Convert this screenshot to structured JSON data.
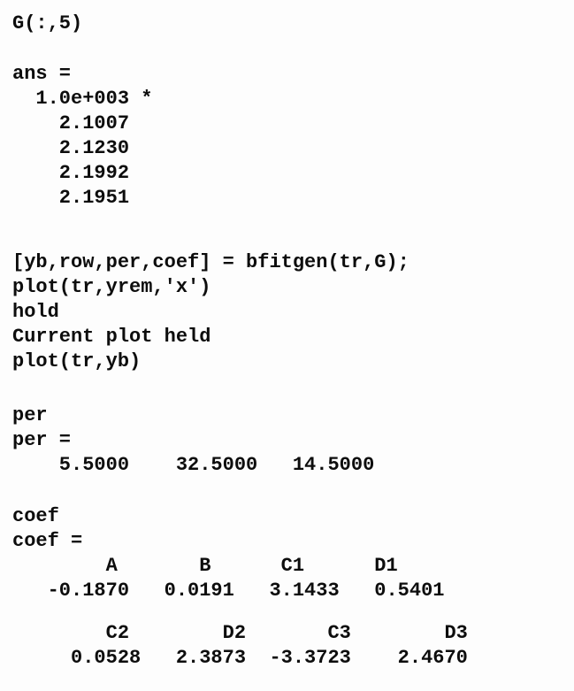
{
  "console": {
    "colors": {
      "background": "#fdfdfd",
      "text": "#0d0d0d"
    },
    "blocks": [
      {
        "lines": [
          "G(:,5)"
        ]
      },
      {
        "lines": [
          "ans =",
          "  1.0e+003 *",
          "    2.1007",
          "    2.1230",
          "    2.1992",
          "    2.1951"
        ]
      },
      {
        "lines": [
          "[yb,row,per,coef] = bfitgen(tr,G);",
          "plot(tr,yrem,'x')",
          "hold",
          "Current plot held",
          "plot(tr,yb)"
        ]
      },
      {
        "lines": [
          "per",
          "per =",
          "    5.5000    32.5000   14.5000"
        ]
      },
      {
        "lines": [
          "coef",
          "coef =",
          "        A       B      C1      D1",
          "   -0.1870   0.0191   3.1433   0.5401"
        ]
      },
      {
        "lines": [
          "        C2        D2       C3        D3",
          "     0.0528   2.3873  -3.3723    2.4670"
        ]
      }
    ],
    "structured_values": {
      "ans_scale_factor": "1.0e+003",
      "ans_values": [
        2.1007,
        2.123,
        2.1992,
        2.1951
      ],
      "per_values": [
        5.5,
        32.5,
        14.5
      ],
      "coef_table": {
        "headers": [
          "A",
          "B",
          "C1",
          "D1",
          "C2",
          "D2",
          "C3",
          "D3"
        ],
        "values": [
          -0.187,
          0.0191,
          3.1433,
          0.5401,
          0.0528,
          2.3873,
          -3.3723,
          2.467
        ]
      }
    }
  }
}
